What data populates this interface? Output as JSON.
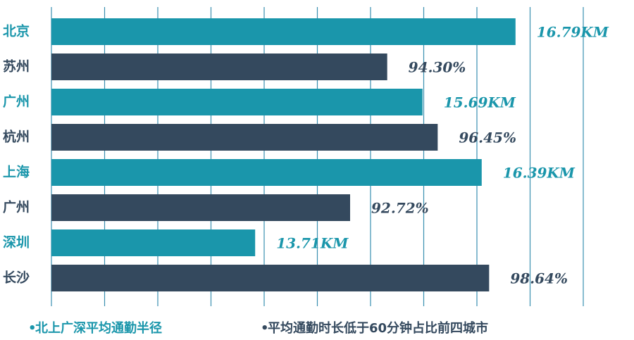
{
  "chart_data": {
    "type": "bar",
    "orientation": "horizontal",
    "categories": [
      "北京",
      "苏州",
      "广州",
      "杭州",
      "上海",
      "广州",
      "深圳",
      "长沙"
    ],
    "xlim": [
      11.3,
      17.8
    ],
    "x2lim": [
      80,
      103.4
    ],
    "grid": true,
    "legend": "bottom",
    "series": [
      {
        "name": "北上广深平均通勤半径",
        "color": "#1a96ab",
        "values": [
          16.79,
          null,
          15.69,
          null,
          16.39,
          null,
          13.71,
          null
        ],
        "value_labels": [
          "16.79KM",
          null,
          "15.69KM",
          null,
          "16.39KM",
          null,
          "13.71KM",
          null
        ]
      },
      {
        "name": "平均通勤时长低于60分钟占比前四城市",
        "color": "#34495e",
        "axis": "x2",
        "values": [
          null,
          94.3,
          null,
          96.45,
          null,
          92.72,
          null,
          98.64
        ],
        "value_labels": [
          null,
          "94.30%",
          null,
          "96.45%",
          null,
          "92.72%",
          null,
          "98.64%"
        ]
      }
    ]
  }
}
